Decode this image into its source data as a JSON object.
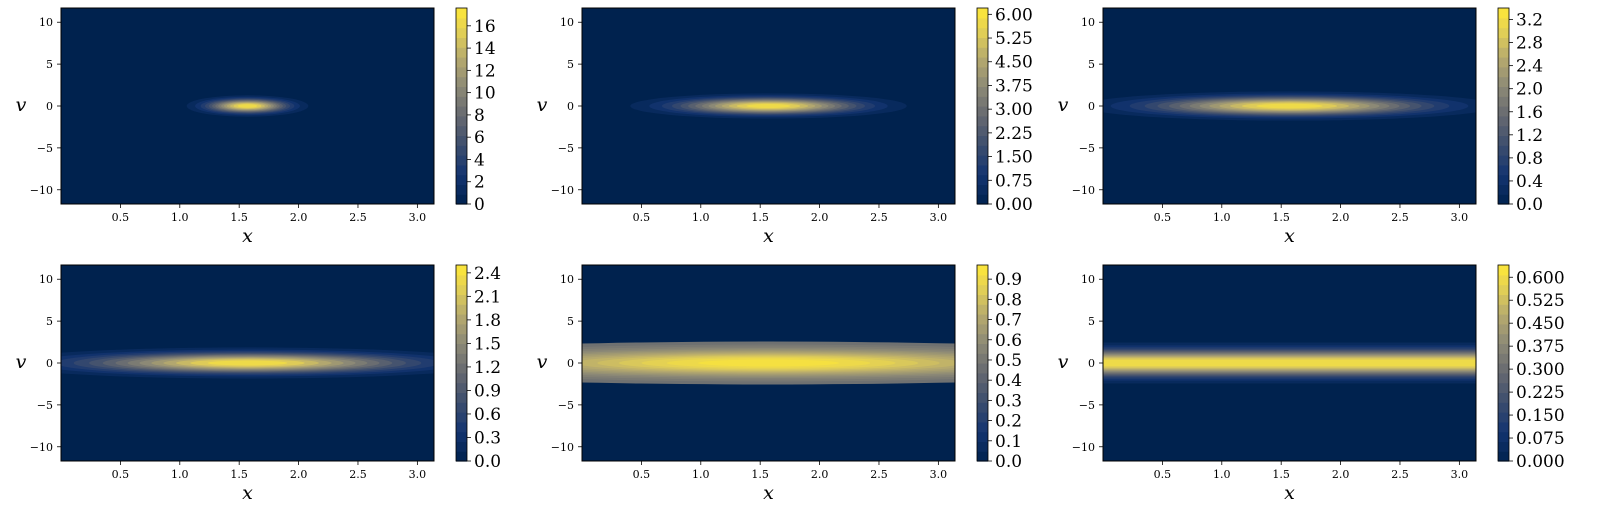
{
  "colors": {
    "colormap": "cividis",
    "low": "#00224e",
    "mid": "#7c7b78",
    "high": "#fee838"
  },
  "chart_data": [
    {
      "type": "heatmap",
      "xlabel": "x",
      "ylabel": "v",
      "xlim": [
        0.0,
        3.14
      ],
      "ylim": [
        -11.7,
        11.7
      ],
      "xticks": [
        "0.5",
        "1.0",
        "1.5",
        "2.0",
        "2.5",
        "3.0"
      ],
      "yticks": [
        "10",
        "5",
        "0",
        "−5",
        "−10"
      ],
      "center": [
        1.57,
        0.0
      ],
      "spread_x": 0.22,
      "spread_v": 0.55,
      "ridge": 0.0,
      "cbar_max": 17.6,
      "cbar_ticks": [
        "0",
        "2",
        "4",
        "6",
        "8",
        "10",
        "12",
        "14",
        "16"
      ],
      "cbar_values": [
        0,
        2,
        4,
        6,
        8,
        10,
        12,
        14,
        16
      ]
    },
    {
      "type": "heatmap",
      "xlabel": "x",
      "ylabel": "v",
      "xlim": [
        0.0,
        3.14
      ],
      "ylim": [
        -11.7,
        11.7
      ],
      "xticks": [
        "0.5",
        "1.0",
        "1.5",
        "2.0",
        "2.5",
        "3.0"
      ],
      "yticks": [
        "10",
        "5",
        "0",
        "−5",
        "−10"
      ],
      "center": [
        1.57,
        0.0
      ],
      "spread_x": 0.5,
      "spread_v": 0.65,
      "ridge": 0.0,
      "cbar_max": 6.2,
      "cbar_ticks": [
        "0.00",
        "0.75",
        "1.50",
        "2.25",
        "3.00",
        "3.75",
        "4.50",
        "5.25",
        "6.00"
      ],
      "cbar_values": [
        0,
        0.75,
        1.5,
        2.25,
        3.0,
        3.75,
        4.5,
        5.25,
        6.0
      ]
    },
    {
      "type": "heatmap",
      "xlabel": "x",
      "ylabel": "v",
      "xlim": [
        0.0,
        3.14
      ],
      "ylim": [
        -11.7,
        11.7
      ],
      "xticks": [
        "0.5",
        "1.0",
        "1.5",
        "2.0",
        "2.5",
        "3.0"
      ],
      "yticks": [
        "10",
        "5",
        "0",
        "−5",
        "−10"
      ],
      "center": [
        1.57,
        0.0
      ],
      "spread_x": 0.75,
      "spread_v": 0.75,
      "ridge": 0.0,
      "cbar_max": 3.4,
      "cbar_ticks": [
        "0.0",
        "0.4",
        "0.8",
        "1.2",
        "1.6",
        "2.0",
        "2.4",
        "2.8",
        "3.2"
      ],
      "cbar_values": [
        0,
        0.4,
        0.8,
        1.2,
        1.6,
        2.0,
        2.4,
        2.8,
        3.2
      ]
    },
    {
      "type": "heatmap",
      "xlabel": "x",
      "ylabel": "v",
      "xlim": [
        0.0,
        3.14
      ],
      "ylim": [
        -11.7,
        11.7
      ],
      "xticks": [
        "0.5",
        "1.0",
        "1.5",
        "2.0",
        "2.5",
        "3.0"
      ],
      "yticks": [
        "10",
        "5",
        "0",
        "−5",
        "−10"
      ],
      "center": [
        1.57,
        0.0
      ],
      "spread_x": 0.9,
      "spread_v": 0.8,
      "ridge": 0.0,
      "cbar_max": 2.5,
      "cbar_ticks": [
        "0.0",
        "0.3",
        "0.6",
        "0.9",
        "1.2",
        "1.5",
        "1.8",
        "2.1",
        "2.4"
      ],
      "cbar_values": [
        0,
        0.3,
        0.6,
        0.9,
        1.2,
        1.5,
        1.8,
        2.1,
        2.4
      ]
    },
    {
      "type": "heatmap",
      "xlabel": "x",
      "ylabel": "v",
      "xlim": [
        0.0,
        3.14
      ],
      "ylim": [
        -11.7,
        11.7
      ],
      "xticks": [
        "0.5",
        "1.0",
        "1.5",
        "2.0",
        "2.5",
        "3.0"
      ],
      "yticks": [
        "10",
        "5",
        "0",
        "−5",
        "−10"
      ],
      "center": [
        1.57,
        0.0
      ],
      "spread_x": 1.6,
      "spread_v": 1.1,
      "ridge": 0.45,
      "cbar_max": 0.97,
      "cbar_ticks": [
        "0.0",
        "0.1",
        "0.2",
        "0.3",
        "0.4",
        "0.5",
        "0.6",
        "0.7",
        "0.8",
        "0.9"
      ],
      "cbar_values": [
        0,
        0.1,
        0.2,
        0.3,
        0.4,
        0.5,
        0.6,
        0.7,
        0.8,
        0.9
      ]
    },
    {
      "type": "heatmap",
      "xlabel": "x",
      "ylabel": "v",
      "xlim": [
        0.0,
        3.14
      ],
      "ylim": [
        -11.7,
        11.7
      ],
      "xticks": [
        "0.5",
        "1.0",
        "1.5",
        "2.0",
        "2.5",
        "3.0"
      ],
      "yticks": [
        "10",
        "5",
        "0",
        "−5",
        "−10"
      ],
      "center": [
        1.57,
        0.0
      ],
      "spread_x": 100,
      "spread_v": 1.05,
      "ridge": 1.0,
      "cbar_max": 0.64,
      "cbar_ticks": [
        "0.000",
        "0.075",
        "0.150",
        "0.225",
        "0.300",
        "0.375",
        "0.450",
        "0.525",
        "0.600"
      ],
      "cbar_values": [
        0,
        0.075,
        0.15,
        0.225,
        0.3,
        0.375,
        0.45,
        0.525,
        0.6
      ]
    }
  ]
}
